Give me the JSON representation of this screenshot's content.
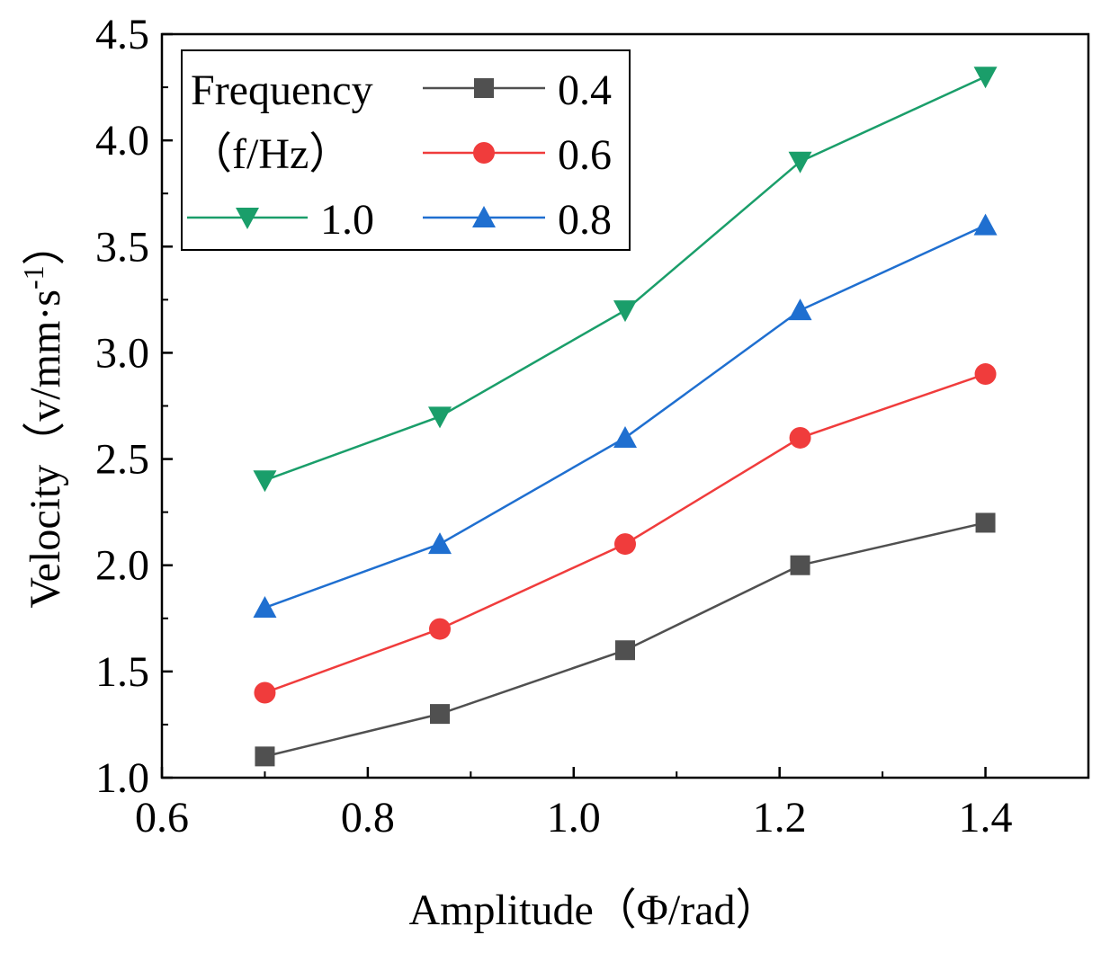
{
  "chart_data": {
    "type": "line",
    "x": [
      0.7,
      0.87,
      1.05,
      1.22,
      1.4
    ],
    "xlim": [
      0.6,
      1.5
    ],
    "ylim": [
      1.0,
      4.5
    ],
    "xticks": [
      0.6,
      0.8,
      1.0,
      1.2,
      1.4
    ],
    "yticks": [
      1.0,
      1.5,
      2.0,
      2.5,
      3.0,
      3.5,
      4.0,
      4.5
    ],
    "xtick_labels": [
      "0.6",
      "0.8",
      "1.0",
      "1.2",
      "1.4"
    ],
    "ytick_labels": [
      "1.0",
      "1.5",
      "2.0",
      "2.5",
      "3.0",
      "3.5",
      "4.0",
      "4.5"
    ],
    "xlabel": "Amplitude（Φ/rad）",
    "ylabel_main": "Velocity（v/mm·s",
    "ylabel_sup": "-1",
    "ylabel_close": "）",
    "grid": false,
    "legend": {
      "position": "top-left",
      "title_line1": "Frequency",
      "title_line2": "（f/Hz）"
    },
    "series": [
      {
        "name": "0.4",
        "color": "#505050",
        "marker": "square",
        "values": [
          1.1,
          1.3,
          1.6,
          2.0,
          2.2
        ]
      },
      {
        "name": "0.6",
        "color": "#f03c3c",
        "marker": "circle",
        "values": [
          1.4,
          1.7,
          2.1,
          2.6,
          2.9
        ]
      },
      {
        "name": "0.8",
        "color": "#1f6fd0",
        "marker": "triangle-up",
        "values": [
          1.8,
          2.1,
          2.6,
          3.2,
          3.6
        ]
      },
      {
        "name": "1.0",
        "color": "#1a9e6a",
        "marker": "triangle-down",
        "values": [
          2.4,
          2.7,
          3.2,
          3.9,
          4.3
        ]
      }
    ]
  }
}
